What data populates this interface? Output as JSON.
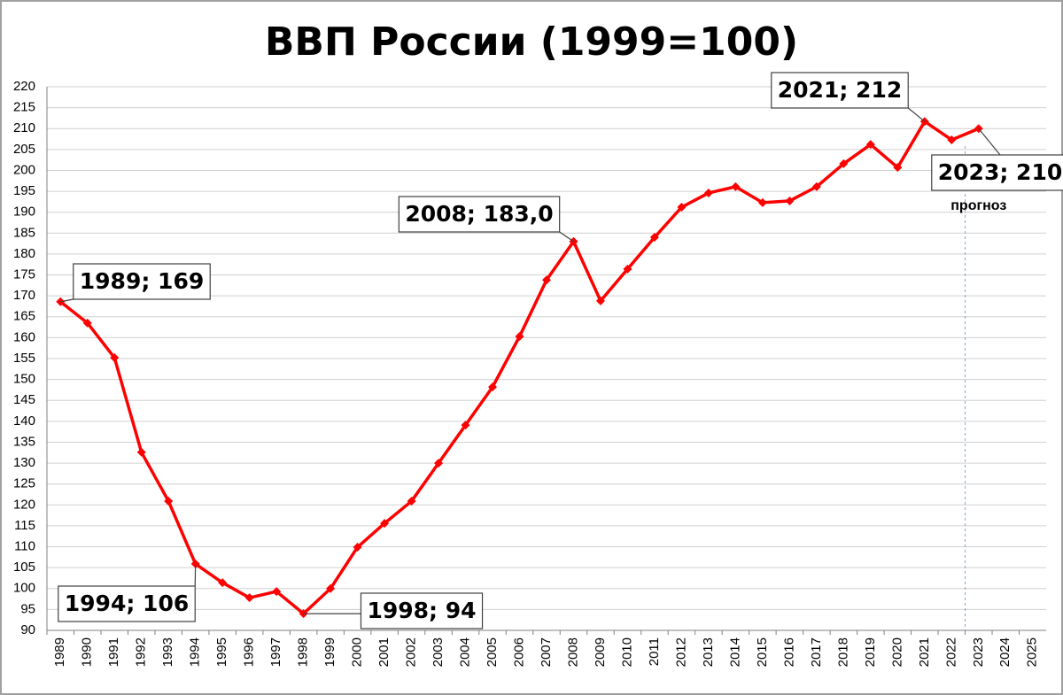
{
  "chart_data": {
    "type": "line",
    "title": "ВВП России (1999=100)",
    "categories": [
      "1989",
      "1990",
      "1991",
      "1992",
      "1993",
      "1994",
      "1995",
      "1996",
      "1997",
      "1998",
      "1999",
      "2000",
      "2001",
      "2002",
      "2003",
      "2004",
      "2005",
      "2006",
      "2007",
      "2008",
      "2009",
      "2010",
      "2011",
      "2012",
      "2013",
      "2014",
      "2015",
      "2016",
      "2017",
      "2018",
      "2019",
      "2020",
      "2021",
      "2022",
      "2023",
      "2024",
      "2025"
    ],
    "series": [
      {
        "name": "ВВП",
        "color": "#ff0000",
        "values": [
          168.6,
          163.5,
          155.2,
          132.6,
          120.9,
          105.9,
          101.4,
          97.8,
          99.3,
          94.0,
          100.0,
          109.9,
          115.6,
          120.9,
          130.0,
          139.1,
          148.2,
          160.3,
          173.8,
          183.0,
          168.8,
          176.4,
          184.0,
          191.2,
          194.6,
          196.1,
          192.3,
          192.7,
          196.1,
          201.6,
          206.2,
          200.7,
          211.7,
          207.3,
          210.0,
          null,
          null
        ]
      }
    ],
    "ylim": [
      90,
      220
    ],
    "yticks": [
      90,
      95,
      100,
      105,
      110,
      115,
      120,
      125,
      130,
      135,
      140,
      145,
      150,
      155,
      160,
      165,
      170,
      175,
      180,
      185,
      190,
      195,
      200,
      205,
      210,
      215,
      220
    ],
    "grid": true,
    "annotations": [
      {
        "index": 0,
        "text": "1989; 169"
      },
      {
        "index": 5,
        "text": "1994; 106"
      },
      {
        "index": 9,
        "text": "1998; 94"
      },
      {
        "index": 19,
        "text": "2008; 183,0"
      },
      {
        "index": 32,
        "text": "2021; 212"
      },
      {
        "index": 34,
        "text": "2023; 210"
      }
    ],
    "forecast_label": "прогноз"
  }
}
